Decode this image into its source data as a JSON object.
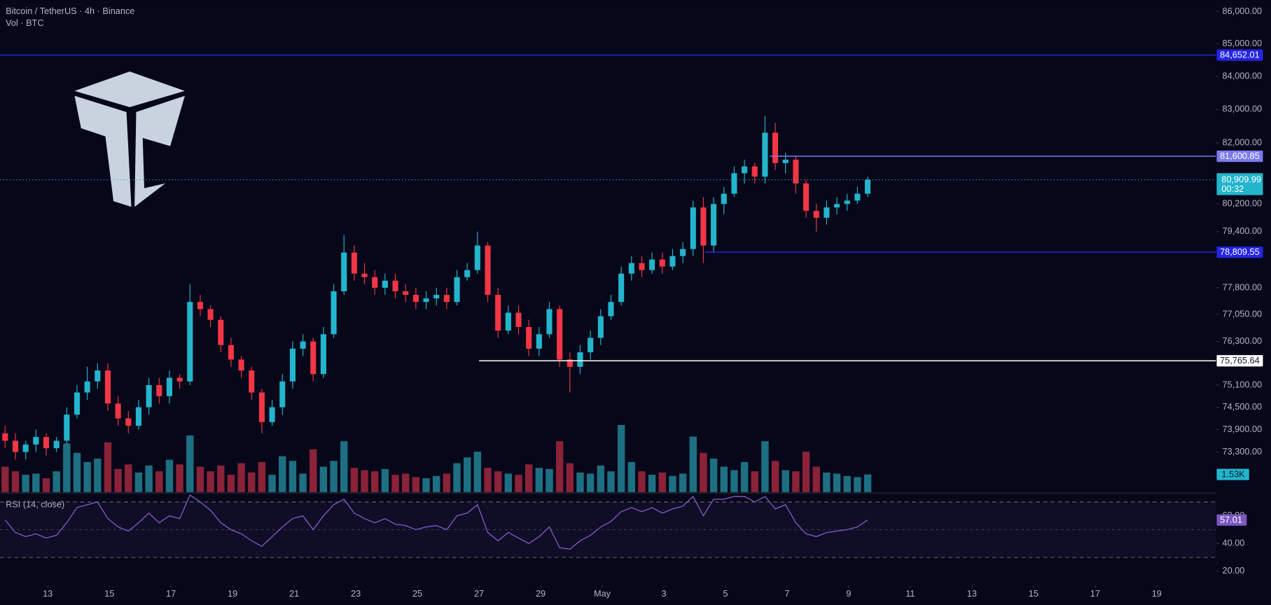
{
  "chart_data": {
    "type": "candlestick",
    "title": "Bitcoin / TetherUS · 4h · Binance",
    "log": true,
    "color_up": "#22b5cc",
    "color_down": "#f23645",
    "open": [
      73800,
      73600,
      73300,
      73500,
      73700,
      73400,
      73600,
      74300,
      74900,
      75200,
      75500,
      74600,
      74200,
      74000,
      74500,
      75100,
      74800,
      75300,
      75200,
      77400,
      77200,
      76900,
      76200,
      75800,
      75500,
      74900,
      74100,
      74500,
      75200,
      76100,
      76300,
      75400,
      76500,
      77700,
      78800,
      78200,
      78100,
      77800,
      78000,
      77700,
      77600,
      77400,
      77500,
      77600,
      77400,
      78100,
      78300,
      79000,
      77600,
      76600,
      77100,
      76700,
      76100,
      76500,
      77200,
      75800,
      75600,
      76000,
      76400,
      77000,
      77400,
      78200,
      78500,
      78300,
      78600,
      78400,
      78700,
      78900,
      80100,
      79000,
      80200,
      80500,
      81100,
      81300,
      81000,
      82300,
      81400,
      81500,
      80800,
      80000,
      79800,
      80100,
      80200,
      80300,
      80500
    ],
    "high": [
      74000,
      73800,
      73600,
      73900,
      73800,
      73700,
      74500,
      75100,
      75600,
      75700,
      75700,
      74800,
      74400,
      74700,
      75300,
      75300,
      75500,
      75400,
      77900,
      77600,
      77300,
      77000,
      76400,
      75900,
      75600,
      75000,
      74700,
      75400,
      76300,
      76500,
      76400,
      76700,
      77900,
      79300,
      79000,
      78500,
      78300,
      78200,
      78200,
      77900,
      77800,
      77700,
      77800,
      77800,
      78300,
      78500,
      79400,
      79100,
      77800,
      77300,
      77300,
      76900,
      76700,
      77400,
      77300,
      76000,
      76200,
      76600,
      77200,
      77600,
      78400,
      78700,
      78700,
      78800,
      78800,
      78900,
      79100,
      80300,
      80400,
      80400,
      80700,
      81300,
      81500,
      81400,
      82800,
      82600,
      81700,
      81600,
      80900,
      80200,
      80300,
      80400,
      80500,
      80700,
      81000
    ],
    "low": [
      73400,
      73100,
      73100,
      73300,
      73200,
      73300,
      73500,
      74200,
      74700,
      75000,
      74400,
      74000,
      73800,
      73900,
      74300,
      74600,
      74600,
      75000,
      75100,
      77000,
      76700,
      76000,
      75600,
      75300,
      74700,
      73800,
      74000,
      74300,
      75000,
      75900,
      75200,
      75300,
      76400,
      77600,
      78000,
      77900,
      77600,
      77600,
      77500,
      77400,
      77200,
      77200,
      77300,
      77200,
      77300,
      78000,
      78200,
      77400,
      76400,
      76500,
      76500,
      75900,
      75900,
      76400,
      75600,
      74900,
      75400,
      75800,
      76200,
      76900,
      77300,
      78000,
      78100,
      78200,
      78200,
      78300,
      78500,
      78700,
      78500,
      78800,
      79900,
      80400,
      80800,
      80800,
      80800,
      81200,
      81100,
      80500,
      79800,
      79400,
      79600,
      79900,
      80000,
      80200,
      80400
    ],
    "close": [
      73600,
      73300,
      73500,
      73700,
      73400,
      73600,
      74300,
      74900,
      75200,
      75500,
      74600,
      74200,
      74000,
      74500,
      75100,
      74800,
      75300,
      75200,
      77400,
      77200,
      76900,
      76200,
      75800,
      75500,
      74900,
      74100,
      74500,
      75200,
      76100,
      76300,
      75400,
      76500,
      77700,
      78800,
      78200,
      78100,
      77800,
      78000,
      77700,
      77600,
      77400,
      77500,
      77600,
      77400,
      78100,
      78300,
      79000,
      77600,
      76600,
      77100,
      76700,
      76100,
      76500,
      77200,
      75800,
      75600,
      76000,
      76400,
      77000,
      77400,
      78200,
      78500,
      78300,
      78600,
      78400,
      78700,
      78900,
      80100,
      79000,
      80200,
      80500,
      81100,
      81300,
      81000,
      82300,
      81400,
      81500,
      80800,
      80000,
      79800,
      80100,
      80200,
      80300,
      80500,
      80909.99
    ],
    "ylim": [
      72240,
      86354
    ],
    "yticks": [
      {
        "value": 86000,
        "label": "86,000.00"
      },
      {
        "value": 85000,
        "label": "85,000.00"
      },
      {
        "value": 84000,
        "label": "84,000.00"
      },
      {
        "value": 83000,
        "label": "83,000.00"
      },
      {
        "value": 82000,
        "label": "82,000.00"
      },
      {
        "value": 80200,
        "label": "80,200.00"
      },
      {
        "value": 79400,
        "label": "79,400.00"
      },
      {
        "value": 77800,
        "label": "77,800.00"
      },
      {
        "value": 77050,
        "label": "77,050.00"
      },
      {
        "value": 76300,
        "label": "76,300.00"
      },
      {
        "value": 75100,
        "label": "75,100.00"
      },
      {
        "value": 74500,
        "label": "74,500.00"
      },
      {
        "value": 73900,
        "label": "73,900.00"
      },
      {
        "value": 73300,
        "label": "73,300.00"
      }
    ],
    "xlim": [
      -1.55,
      37.92
    ],
    "xticks": [
      {
        "value": 0,
        "label": "13"
      },
      {
        "value": 2,
        "label": "15"
      },
      {
        "value": 4,
        "label": "17"
      },
      {
        "value": 6,
        "label": "19"
      },
      {
        "value": 8,
        "label": "21"
      },
      {
        "value": 10,
        "label": "23"
      },
      {
        "value": 12,
        "label": "25"
      },
      {
        "value": 14,
        "label": "27"
      },
      {
        "value": 16,
        "label": "29"
      },
      {
        "value": 18,
        "label": "May"
      },
      {
        "value": 20,
        "label": "3"
      },
      {
        "value": 22,
        "label": "5"
      },
      {
        "value": 24,
        "label": "7"
      },
      {
        "value": 26,
        "label": "9"
      },
      {
        "value": 28,
        "label": "11"
      },
      {
        "value": 30,
        "label": "13"
      },
      {
        "value": 32,
        "label": "15"
      },
      {
        "value": 34,
        "label": "17"
      },
      {
        "value": 36,
        "label": "19"
      }
    ],
    "levels": [
      {
        "value": 84652.01,
        "label": "84,652.01",
        "color": "#2424e6"
      },
      {
        "value": 81600.85,
        "label": "81,600.85",
        "color": "#7b7bef"
      },
      {
        "value": 78809.55,
        "label": "78,809.55",
        "color": "#2424e6"
      },
      {
        "value": 75765.64,
        "label": "75,765.64",
        "color": "#ffffff"
      }
    ],
    "last_price": {
      "value": 80909.99,
      "label": "80,909.99",
      "countdown": "00:32",
      "color": "#22b5cc"
    },
    "volume": {
      "name": "Vol · BTC",
      "color_up": "#1d6f82",
      "color_down": "#8a2238",
      "ylim": [
        0,
        7000
      ],
      "values": [
        2200,
        1800,
        1500,
        1600,
        1200,
        1800,
        4200,
        3400,
        2600,
        2900,
        4300,
        2000,
        2400,
        1700,
        2300,
        1800,
        2800,
        2400,
        4900,
        2200,
        1800,
        2300,
        1500,
        2500,
        1700,
        2600,
        1500,
        3100,
        2700,
        1600,
        3700,
        2200,
        2700,
        4400,
        2100,
        1900,
        1800,
        2000,
        1500,
        1600,
        1300,
        1200,
        1400,
        1600,
        2500,
        3000,
        3500,
        2100,
        1800,
        1600,
        1500,
        2400,
        2100,
        2000,
        4400,
        2500,
        1700,
        1600,
        2300,
        1800,
        5800,
        2600,
        1800,
        1500,
        1700,
        1400,
        1600,
        4800,
        3400,
        2900,
        2200,
        1900,
        2600,
        1800,
        4400,
        2700,
        1900,
        1800,
        3500,
        2200,
        1700,
        1600,
        1400,
        1300,
        1530
      ],
      "label": "1.53K"
    },
    "rsi": {
      "name": "RSI (14, close)",
      "color": "#7e57c2",
      "ylim": [
        11,
        76.5
      ],
      "yticks": [
        {
          "value": 60,
          "label": "60.00"
        },
        {
          "value": 40,
          "label": "40.00"
        },
        {
          "value": 20,
          "label": "20.00"
        }
      ],
      "bands": [
        30,
        70
      ],
      "midline": 50,
      "label": "57.01",
      "values": [
        57,
        48,
        45,
        47,
        44,
        46,
        55,
        66,
        68,
        70,
        58,
        52,
        49,
        55,
        62,
        55,
        60,
        58,
        75,
        70,
        64,
        55,
        50,
        47,
        42,
        38,
        45,
        52,
        58,
        60,
        50,
        60,
        68,
        72,
        62,
        58,
        55,
        58,
        54,
        53,
        50,
        52,
        53,
        50,
        60,
        62,
        68,
        48,
        42,
        48,
        44,
        40,
        45,
        52,
        37,
        36,
        42,
        46,
        52,
        56,
        63,
        66,
        63,
        66,
        62,
        65,
        67,
        74,
        60,
        72,
        72,
        74,
        74,
        70,
        74,
        65,
        68,
        55,
        47,
        45,
        48,
        49,
        50,
        52,
        57.01
      ]
    }
  }
}
